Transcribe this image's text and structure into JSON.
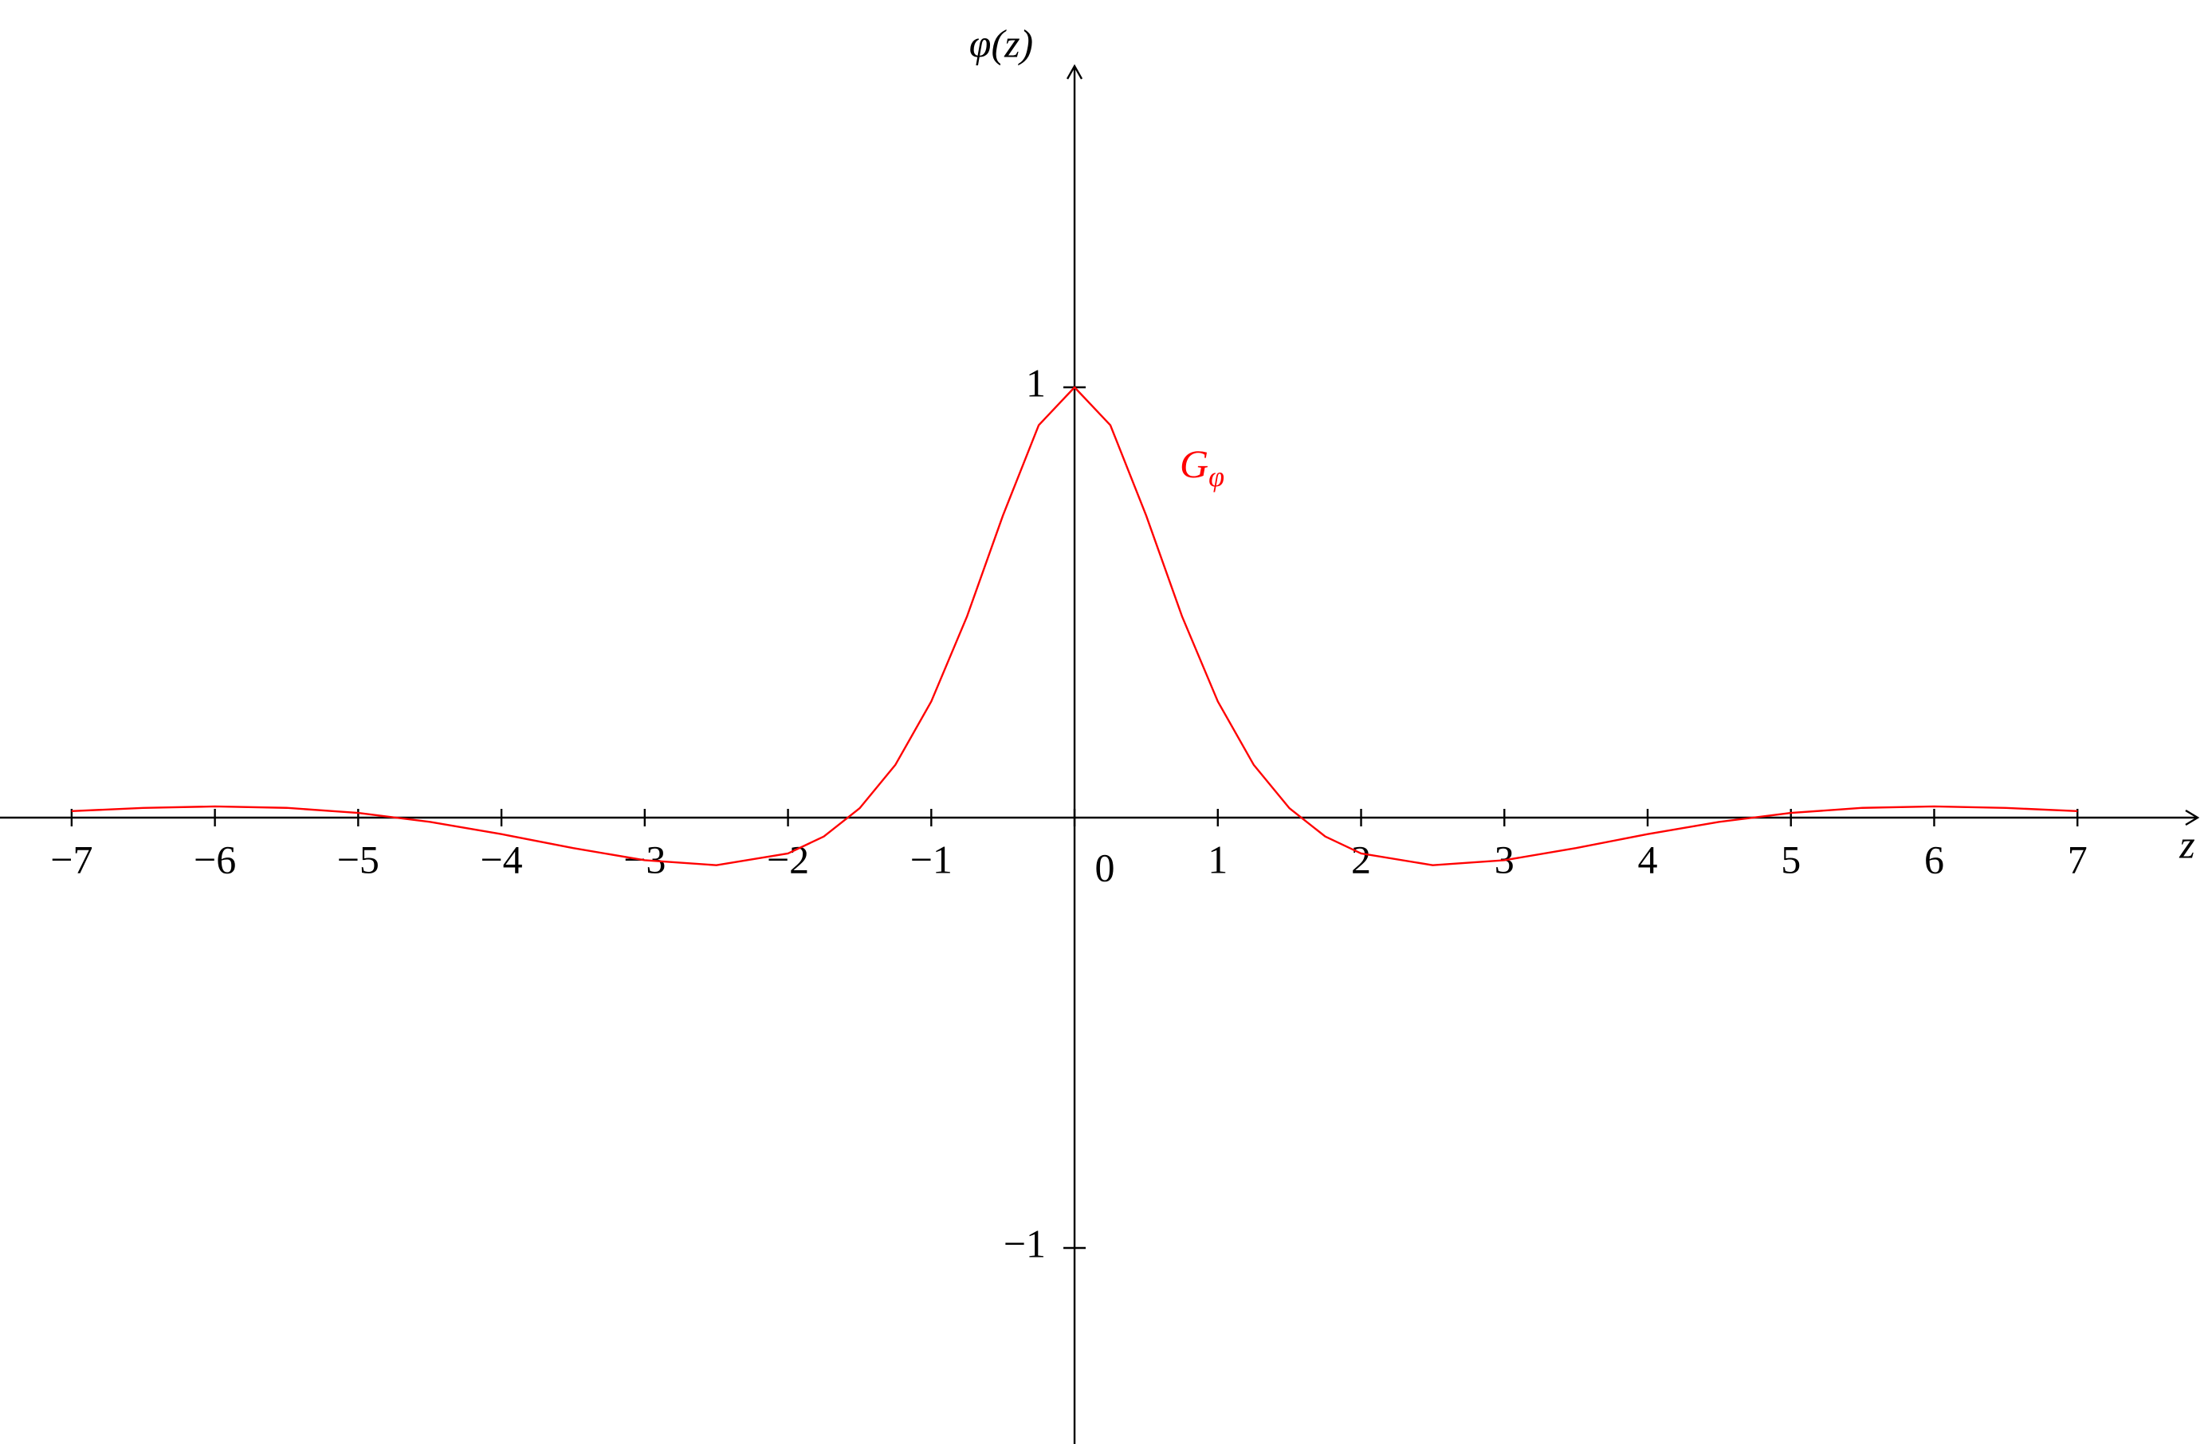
{
  "chart_data": {
    "type": "line",
    "x_label": "z",
    "y_label": "φ(z)",
    "annotation": {
      "text": "G",
      "subscript": "φ"
    },
    "x": [
      -7,
      -6.5,
      -6,
      -5.5,
      -5,
      -4.5,
      -4,
      -3.5,
      -3,
      -2.5,
      -2,
      -1.75,
      -1.5,
      -1.25,
      -1,
      -0.75,
      -0.5,
      -0.25,
      0,
      0.25,
      0.5,
      0.75,
      1,
      1.25,
      1.5,
      1.75,
      2,
      2.5,
      3,
      3.5,
      4,
      4.5,
      5,
      5.5,
      6,
      6.5,
      7
    ],
    "series": [
      {
        "color": "#ff0000",
        "values": [
          0.0151,
          0.0226,
          0.026,
          0.0227,
          0.0109,
          -0.0099,
          -0.0384,
          -0.0707,
          -0.099,
          -0.1105,
          -0.0832,
          -0.0439,
          0.0218,
          0.123,
          0.27,
          0.468,
          0.702,
          0.912,
          1,
          0.912,
          0.702,
          0.468,
          0.27,
          0.123,
          0.0218,
          -0.0439,
          -0.0832,
          -0.1105,
          -0.099,
          -0.0707,
          -0.0384,
          -0.0099,
          0.0109,
          0.0227,
          0.026,
          0.0226,
          0.0151
        ]
      }
    ],
    "xlim": [
      -7.5,
      7.85
    ],
    "ylim": [
      -1.5,
      1.75
    ],
    "xticks": [
      {
        "value": -7,
        "label": "−7"
      },
      {
        "value": -6,
        "label": "−6"
      },
      {
        "value": -5,
        "label": "−5"
      },
      {
        "value": -4,
        "label": "−4"
      },
      {
        "value": -3,
        "label": "−3"
      },
      {
        "value": -2,
        "label": "−2"
      },
      {
        "value": -1,
        "label": "−1"
      },
      0,
      1,
      2,
      3,
      4,
      5,
      6,
      7
    ],
    "yticks": [
      {
        "value": -1,
        "label": "−1"
      },
      1
    ]
  }
}
